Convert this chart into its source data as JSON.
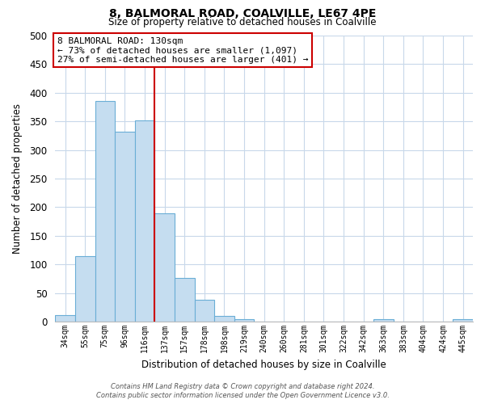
{
  "title": "8, BALMORAL ROAD, COALVILLE, LE67 4PE",
  "subtitle": "Size of property relative to detached houses in Coalville",
  "xlabel": "Distribution of detached houses by size in Coalville",
  "ylabel": "Number of detached properties",
  "bar_labels": [
    "34sqm",
    "55sqm",
    "75sqm",
    "96sqm",
    "116sqm",
    "137sqm",
    "157sqm",
    "178sqm",
    "198sqm",
    "219sqm",
    "240sqm",
    "260sqm",
    "281sqm",
    "301sqm",
    "322sqm",
    "342sqm",
    "363sqm",
    "383sqm",
    "404sqm",
    "424sqm",
    "445sqm"
  ],
  "bar_values": [
    12,
    115,
    385,
    332,
    352,
    190,
    76,
    38,
    10,
    5,
    0,
    0,
    0,
    0,
    0,
    0,
    5,
    0,
    0,
    0,
    4
  ],
  "bar_color": "#c5ddf0",
  "bar_edge_color": "#6aaed6",
  "vline_index": 5,
  "vline_color": "#cc0000",
  "ylim": [
    0,
    500
  ],
  "yticks": [
    0,
    50,
    100,
    150,
    200,
    250,
    300,
    350,
    400,
    450,
    500
  ],
  "annotation_title": "8 BALMORAL ROAD: 130sqm",
  "annotation_line1": "← 73% of detached houses are smaller (1,097)",
  "annotation_line2": "27% of semi-detached houses are larger (401) →",
  "annotation_box_color": "#ffffff",
  "annotation_box_edge": "#cc0000",
  "footer1": "Contains HM Land Registry data © Crown copyright and database right 2024.",
  "footer2": "Contains public sector information licensed under the Open Government Licence v3.0.",
  "bg_color": "#ffffff",
  "grid_color": "#c8d8ea"
}
